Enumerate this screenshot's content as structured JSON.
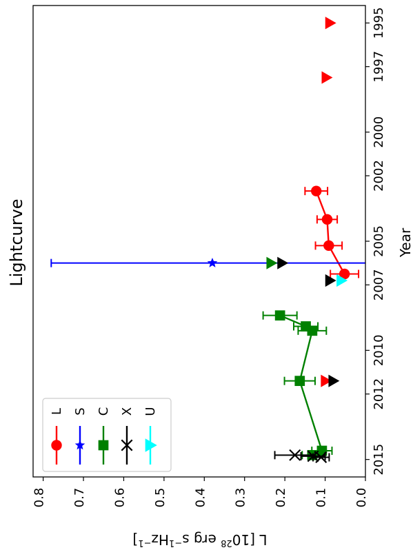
{
  "chart_data": {
    "type": "scatter",
    "orientation": "rotated-90",
    "title": "Lightcurve",
    "xlabel": "Year",
    "ylabel": "L [10^28 erg s^-1 Hz^-1]",
    "ylabel_parts": {
      "main": "L [10",
      "exp1": "28",
      "mid": " erg s",
      "exp2": "−1",
      "mid2": "Hz",
      "exp3": "−1",
      "end": "]"
    },
    "xlim": [
      1994.2,
      2015.8
    ],
    "ylim": [
      0,
      0.825
    ],
    "x_ticks": [
      1995,
      1997,
      2000,
      2002,
      2005,
      2007,
      2010,
      2012,
      2015
    ],
    "x_tick_labels": [
      "1995",
      "1997",
      "2000",
      "2002",
      "2005",
      "2007",
      "2010",
      "2012",
      "2015"
    ],
    "y_ticks": [
      0.0,
      0.1,
      0.2,
      0.3,
      0.4,
      0.5,
      0.6,
      0.7,
      0.8
    ],
    "y_tick_labels": [
      "0.0",
      "0.1",
      "0.2",
      "0.3",
      "0.4",
      "0.5",
      "0.6",
      "0.7",
      "0.8"
    ],
    "grid": false,
    "legend_position": "bottom-left",
    "series": [
      {
        "name": "L",
        "color": "#ff0000",
        "marker": "circle",
        "line": true,
        "points": [
          {
            "x": 2002.7,
            "y": 0.122,
            "err": 0.028
          },
          {
            "x": 2004.0,
            "y": 0.095,
            "err": 0.025
          },
          {
            "x": 2005.2,
            "y": 0.091,
            "err": 0.033
          },
          {
            "x": 2006.5,
            "y": 0.052,
            "err": 0.035
          }
        ],
        "limits": [
          {
            "x": 1995.0,
            "y": 0.088
          },
          {
            "x": 1997.5,
            "y": 0.097
          },
          {
            "x": 2011.4,
            "y": 0.099
          }
        ]
      },
      {
        "name": "S",
        "color": "#0000ff",
        "marker": "star",
        "line": false,
        "points": [
          {
            "x": 2006.0,
            "y": 0.38,
            "err_high": 0.4,
            "err_low": 0.38
          }
        ],
        "limits": []
      },
      {
        "name": "C",
        "color": "#008000",
        "marker": "square",
        "line": true,
        "points": [
          {
            "x": 2008.4,
            "y": 0.212,
            "err": 0.042
          },
          {
            "x": 2008.9,
            "y": 0.148,
            "err": 0.03
          },
          {
            "x": 2009.1,
            "y": 0.132,
            "err": 0.035
          },
          {
            "x": 2011.4,
            "y": 0.163,
            "err": 0.038
          },
          {
            "x": 2014.6,
            "y": 0.108,
            "err": 0.025
          },
          {
            "x": 2014.8,
            "y": 0.132,
            "err": 0.025
          }
        ],
        "limits": [
          {
            "x": 2006.0,
            "y": 0.234
          }
        ]
      },
      {
        "name": "X",
        "color": "#000000",
        "marker": "x",
        "line": false,
        "points": [
          {
            "x": 2014.8,
            "y": 0.175,
            "err": 0.05
          },
          {
            "x": 2014.85,
            "y": 0.13,
            "err": 0.03
          },
          {
            "x": 2014.9,
            "y": 0.11,
            "err": 0.02
          }
        ],
        "limits": [
          {
            "x": 2006.0,
            "y": 0.207
          },
          {
            "x": 2006.8,
            "y": 0.088
          },
          {
            "x": 2011.4,
            "y": 0.08
          }
        ]
      },
      {
        "name": "U",
        "color": "#00ffff",
        "marker": "triangle",
        "line": false,
        "points": [],
        "limits": [
          {
            "x": 2006.8,
            "y": 0.06
          }
        ]
      }
    ]
  }
}
